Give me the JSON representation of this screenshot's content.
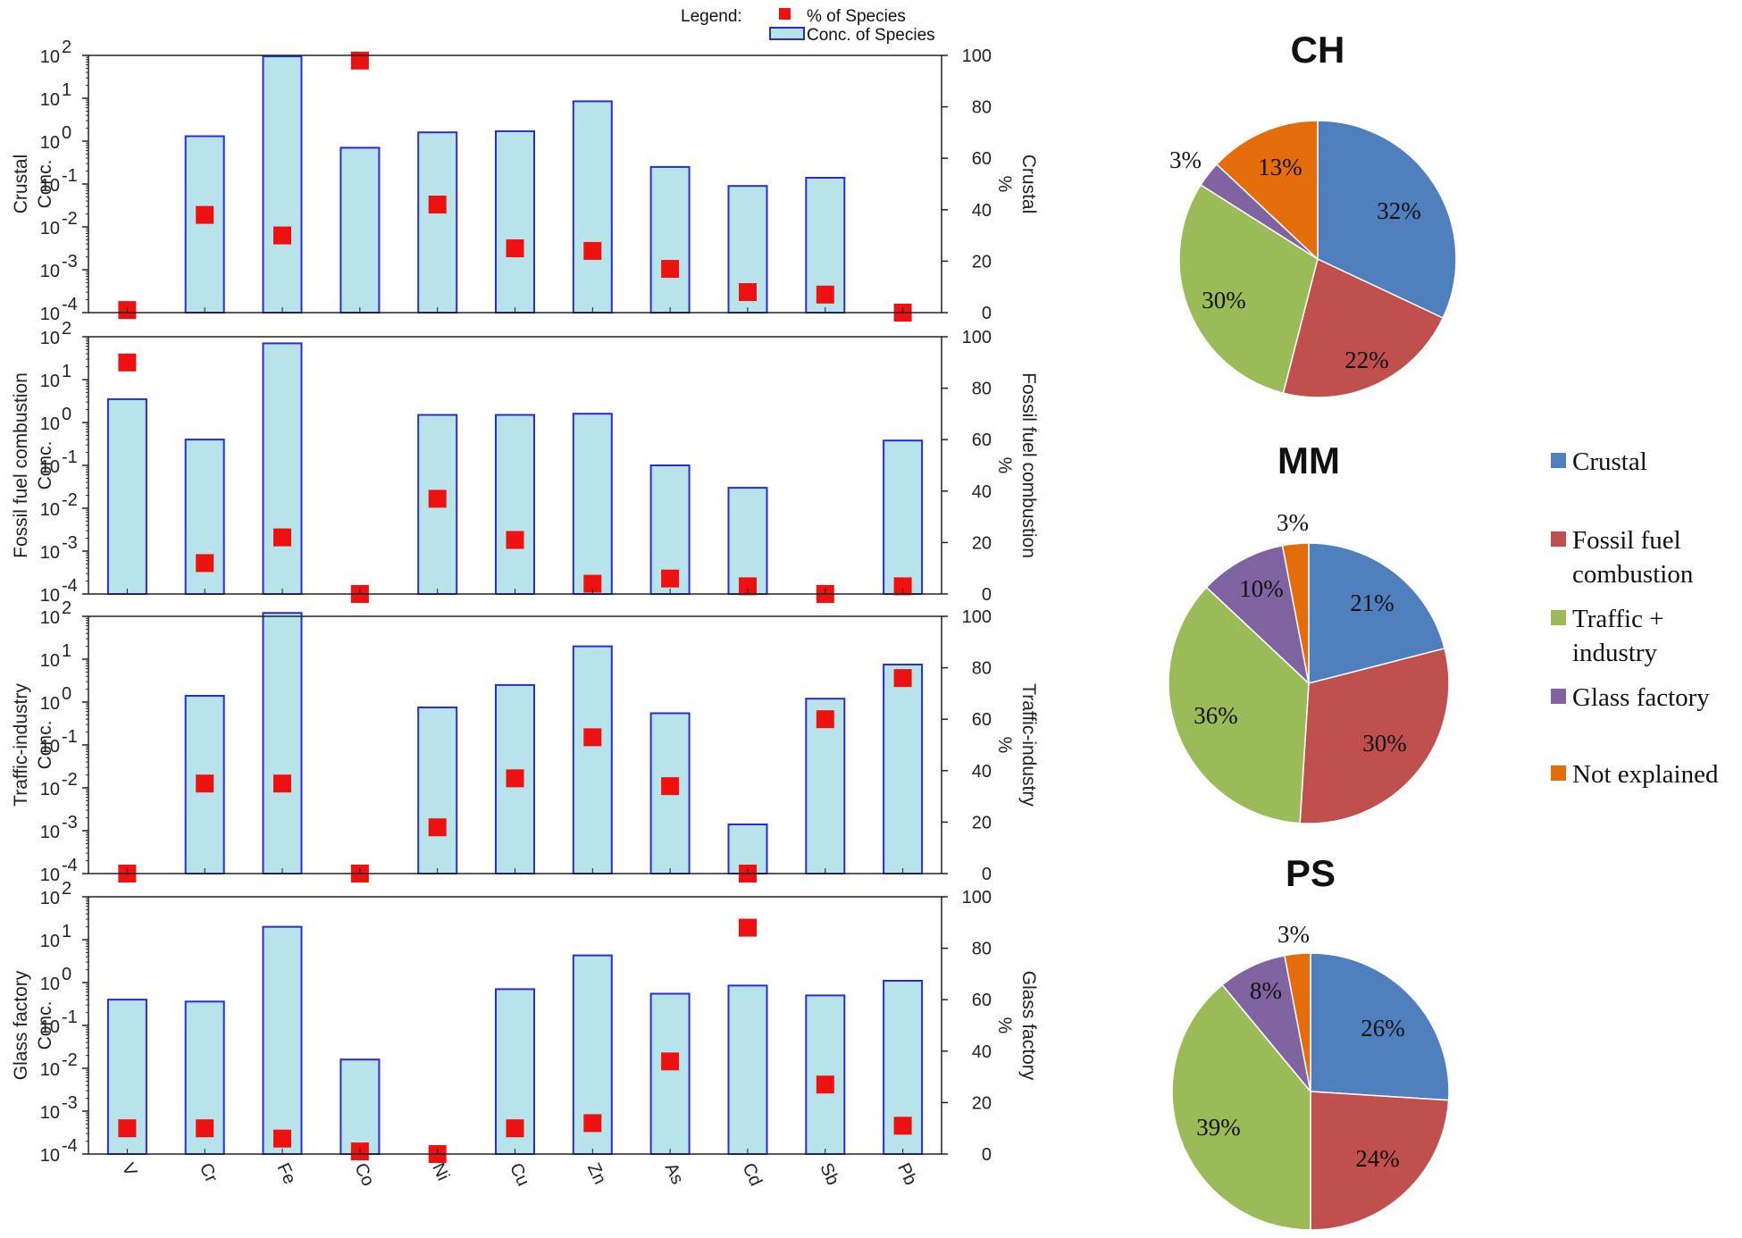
{
  "chart_data": [
    {
      "type": "bar",
      "title": "",
      "legend_title": "Legend:",
      "legend": [
        "% of Species",
        "Conc. of Species"
      ],
      "legend_position": "top",
      "categories": [
        "V",
        "Cr",
        "Fe",
        "Co",
        "Ni",
        "Cu",
        "Zn",
        "As",
        "Cd",
        "Sb",
        "Pb"
      ],
      "xlabel": "",
      "left_axis": {
        "scale": "log",
        "range": [
          0.0001,
          100
        ],
        "tick_base": "10",
        "tick_exponents": [
          "-4",
          "-3",
          "-2",
          "-1",
          "0",
          "1",
          "2"
        ]
      },
      "right_axis": {
        "label": "%",
        "range": [
          0,
          100
        ],
        "ticks": [
          "0",
          "20",
          "40",
          "60",
          "80",
          "100"
        ]
      },
      "panels": [
        {
          "name": "crustal",
          "ylabel_lines": [
            "Crustal",
            "Conc."
          ],
          "right_label": "Crustal",
          "conc": [
            null,
            1.3,
            95,
            0.7,
            1.6,
            1.7,
            8.5,
            0.25,
            0.09,
            0.14,
            null
          ],
          "percent": [
            1,
            38,
            30,
            98,
            42,
            25,
            24,
            17,
            8,
            7,
            0
          ]
        },
        {
          "name": "fossil",
          "ylabel_lines": [
            "Fossil fuel combustion",
            "Conc."
          ],
          "right_label": "Fossil fuel combustion",
          "conc": [
            3.5,
            0.4,
            70,
            null,
            1.5,
            1.5,
            1.6,
            0.1,
            0.03,
            null,
            0.38
          ],
          "percent": [
            90,
            12,
            22,
            0,
            37,
            21,
            4,
            6,
            3,
            0,
            3
          ]
        },
        {
          "name": "traffic",
          "ylabel_lines": [
            "Traffic-industry",
            "Conc."
          ],
          "right_label": "Traffic-industry",
          "conc": [
            null,
            1.4,
            120,
            null,
            0.75,
            2.5,
            20,
            0.55,
            0.0014,
            1.2,
            7.5
          ],
          "percent": [
            0,
            35,
            35,
            0,
            18,
            37,
            53,
            34,
            0,
            60,
            76
          ]
        },
        {
          "name": "glass",
          "ylabel_lines": [
            "Glass factory",
            "Conc."
          ],
          "right_label": "Glass factory",
          "conc": [
            0.4,
            0.36,
            20,
            0.016,
            null,
            0.7,
            4.3,
            0.55,
            0.85,
            0.5,
            1.1
          ],
          "percent": [
            10,
            10,
            6,
            1,
            0,
            10,
            12,
            36,
            88,
            27,
            11
          ]
        }
      ]
    },
    {
      "type": "pie",
      "title": "CH",
      "series": [
        {
          "name": "Crustal",
          "value": 32
        },
        {
          "name": "Fossil fuel combustion",
          "value": 22
        },
        {
          "name": "Traffic + industry",
          "value": 30
        },
        {
          "name": "Glass factory",
          "value": 3
        },
        {
          "name": "Not explained",
          "value": 13
        }
      ],
      "labels": [
        "32%",
        "22%",
        "30%",
        "3%",
        "13%"
      ]
    },
    {
      "type": "pie",
      "title": "MM",
      "series": [
        {
          "name": "Crustal",
          "value": 21
        },
        {
          "name": "Fossil fuel combustion",
          "value": 30
        },
        {
          "name": "Traffic + industry",
          "value": 36
        },
        {
          "name": "Glass factory",
          "value": 10
        },
        {
          "name": "Not explained",
          "value": 3
        }
      ],
      "labels": [
        "21%",
        "30%",
        "36%",
        "10%",
        "3%"
      ]
    },
    {
      "type": "pie",
      "title": "PS",
      "series": [
        {
          "name": "Crustal",
          "value": 26
        },
        {
          "name": "Fossil fuel combustion",
          "value": 24
        },
        {
          "name": "Traffic + industry",
          "value": 39
        },
        {
          "name": "Glass factory",
          "value": 8
        },
        {
          "name": "Not explained",
          "value": 3
        }
      ],
      "labels": [
        "26%",
        "24%",
        "39%",
        "8%",
        "3%"
      ]
    }
  ],
  "pie_legend": {
    "items": [
      {
        "lines": [
          "Crustal"
        ],
        "color": "#4f7fbd"
      },
      {
        "lines": [
          "Fossil fuel",
          "combustion"
        ],
        "color": "#c0504d"
      },
      {
        "lines": [
          "Traffic +",
          "industry"
        ],
        "color": "#9bbb59"
      },
      {
        "lines": [
          "Glass factory"
        ],
        "color": "#8064a2"
      },
      {
        "lines": [
          "Not explained"
        ],
        "color": "#e46c0a"
      }
    ]
  },
  "colors": {
    "bar_fill": "#b7e4eb",
    "bar_stroke": "#2b2bd6",
    "marker": "#ee1111",
    "axis": "#222222"
  }
}
